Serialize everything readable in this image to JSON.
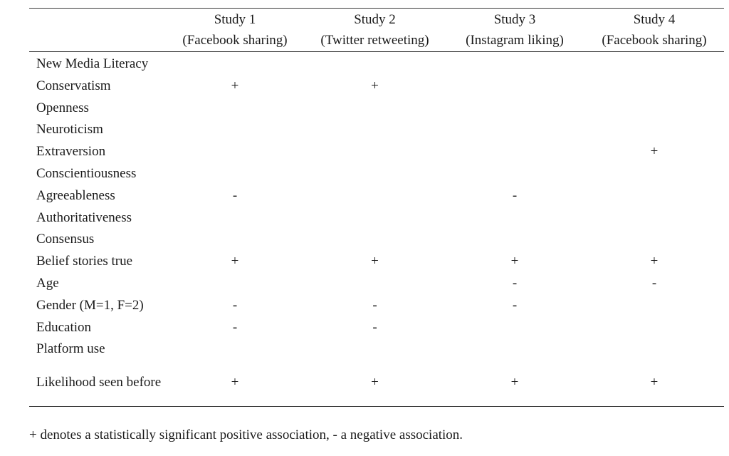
{
  "table": {
    "columns": [
      {
        "title": "Study 1",
        "subtitle": "(Facebook sharing)"
      },
      {
        "title": "Study 2",
        "subtitle": "(Twitter retweeting)"
      },
      {
        "title": "Study 3",
        "subtitle": "(Instagram liking)"
      },
      {
        "title": "Study 4",
        "subtitle": "(Facebook sharing)"
      }
    ],
    "rows": [
      {
        "label": "New Media Literacy",
        "cells": [
          "",
          "",
          "",
          ""
        ]
      },
      {
        "label": "Conservatism",
        "cells": [
          "+",
          "+",
          "",
          ""
        ]
      },
      {
        "label": "Openness",
        "cells": [
          "",
          "",
          "",
          ""
        ]
      },
      {
        "label": "Neuroticism",
        "cells": [
          "",
          "",
          "",
          ""
        ]
      },
      {
        "label": "Extraversion",
        "cells": [
          "",
          "",
          "",
          "+"
        ]
      },
      {
        "label": "Conscientiousness",
        "cells": [
          "",
          "",
          "",
          ""
        ]
      },
      {
        "label": "Agreeableness",
        "cells": [
          "-",
          "",
          "-",
          ""
        ]
      },
      {
        "label": "Authoritativeness",
        "cells": [
          "",
          "",
          "",
          ""
        ]
      },
      {
        "label": "Consensus",
        "cells": [
          "",
          "",
          "",
          ""
        ]
      },
      {
        "label": "Belief stories true",
        "cells": [
          "+",
          "+",
          "+",
          "+"
        ]
      },
      {
        "label": "Age",
        "cells": [
          "",
          "",
          "-",
          "-"
        ]
      },
      {
        "label": "Gender (M=1, F=2)",
        "cells": [
          "-",
          "-",
          "-",
          ""
        ]
      },
      {
        "label": "Education",
        "cells": [
          "-",
          "-",
          "",
          ""
        ]
      },
      {
        "label": "Platform use",
        "cells": [
          "",
          "",
          "",
          ""
        ]
      },
      {
        "label": "Likelihood seen before",
        "cells": [
          "+",
          "+",
          "+",
          "+"
        ]
      }
    ]
  },
  "footnote": "+ denotes a statistically significant positive association, - a negative association."
}
